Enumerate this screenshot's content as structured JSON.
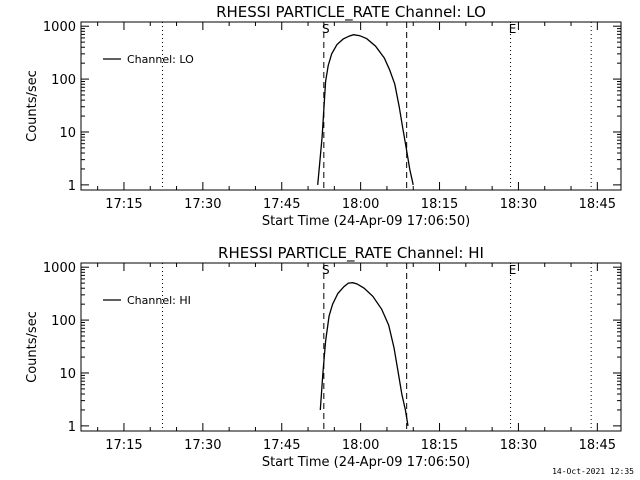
{
  "footer_timestamp": "14-Oct-2021 12:35",
  "chart_data": [
    {
      "type": "line",
      "title": "RHESSI PARTICLE_RATE Channel: LO",
      "xlabel": "Start Time (24-Apr-09 17:06:50)",
      "ylabel": "Counts/sec",
      "yscale": "log",
      "ylim": [
        0.8,
        1200
      ],
      "xlim": [
        "17:06:50",
        "18:49:30"
      ],
      "xticks": [
        "17:15",
        "17:30",
        "17:45",
        "18:00",
        "18:15",
        "18:30",
        "18:45"
      ],
      "yticks": [
        "1",
        "10",
        "100",
        "1000"
      ],
      "legend": {
        "placement": "top-left",
        "entries": [
          "Channel: LO"
        ]
      },
      "markers": [
        {
          "label": "",
          "x": "17:22:20",
          "style": "dotted"
        },
        {
          "label": "S",
          "x": "17:53:00",
          "style": "dashed"
        },
        {
          "label": "",
          "x": "18:08:45",
          "style": "dashed"
        },
        {
          "label": "E",
          "x": "18:28:30",
          "style": "dotted"
        },
        {
          "label": "",
          "x": "18:43:50",
          "style": "dotted"
        }
      ],
      "series": [
        {
          "name": "Channel: LO",
          "x": [
            "17:51:50",
            "17:52:40",
            "17:53:20",
            "17:53:50",
            "17:54:30",
            "17:55:30",
            "17:56:40",
            "17:57:50",
            "17:58:40",
            "17:59:50",
            "18:01:10",
            "18:02:50",
            "18:04:30",
            "18:05:30",
            "18:06:30",
            "18:07:20",
            "18:08:00",
            "18:08:40",
            "18:09:20",
            "18:10:00"
          ],
          "y": [
            1,
            8,
            90,
            180,
            300,
            450,
            570,
            650,
            690,
            660,
            580,
            420,
            250,
            150,
            80,
            30,
            12,
            5,
            2,
            1
          ]
        }
      ]
    },
    {
      "type": "line",
      "title": "RHESSI PARTICLE_RATE Channel: HI",
      "xlabel": "Start Time (24-Apr-09 17:06:50)",
      "ylabel": "Counts/sec",
      "yscale": "log",
      "ylim": [
        0.8,
        1200
      ],
      "xlim": [
        "17:06:50",
        "18:49:30"
      ],
      "xticks": [
        "17:15",
        "17:30",
        "17:45",
        "18:00",
        "18:15",
        "18:30",
        "18:45"
      ],
      "yticks": [
        "1",
        "10",
        "100",
        "1000"
      ],
      "legend": {
        "placement": "top-left",
        "entries": [
          "Channel: HI"
        ]
      },
      "markers": [
        {
          "label": "",
          "x": "17:22:20",
          "style": "dotted"
        },
        {
          "label": "S",
          "x": "17:53:00",
          "style": "dashed"
        },
        {
          "label": "",
          "x": "18:08:45",
          "style": "dashed"
        },
        {
          "label": "E",
          "x": "18:28:30",
          "style": "dotted"
        },
        {
          "label": "",
          "x": "18:43:50",
          "style": "dotted"
        }
      ],
      "series": [
        {
          "name": "Channel: HI",
          "x": [
            "17:52:20",
            "17:52:50",
            "17:53:20",
            "17:54:00",
            "17:54:40",
            "17:55:40",
            "17:56:50",
            "17:57:40",
            "17:58:30",
            "17:59:20",
            "18:00:40",
            "18:02:20",
            "18:04:00",
            "18:05:20",
            "18:06:20",
            "18:07:10",
            "18:07:50",
            "18:08:30",
            "18:09:00"
          ],
          "y": [
            2,
            10,
            40,
            120,
            200,
            320,
            430,
            500,
            510,
            480,
            400,
            280,
            160,
            80,
            30,
            10,
            4,
            2,
            1
          ]
        }
      ]
    }
  ]
}
